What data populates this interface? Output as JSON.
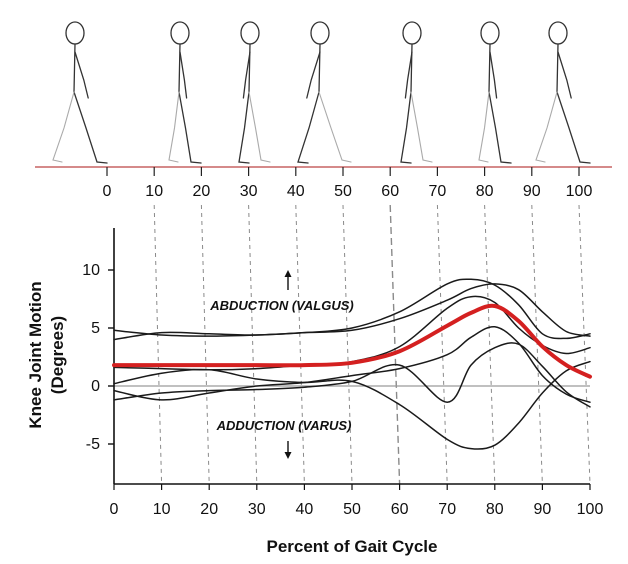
{
  "chart_data": {
    "type": "line",
    "xlabel": "Percent of Gait Cycle",
    "ylabel_line1": "Knee Joint Motion",
    "ylabel_line2": "(Degrees)",
    "xlim": [
      0,
      100
    ],
    "ylim": [
      -10,
      12
    ],
    "x_ticks": [
      0,
      10,
      20,
      30,
      40,
      50,
      60,
      70,
      80,
      90,
      100
    ],
    "y_ticks": [
      10,
      5,
      0,
      -5
    ],
    "top_scale_ticks": [
      0,
      10,
      20,
      30,
      40,
      50,
      60,
      70,
      80,
      90,
      100
    ],
    "annotations": {
      "abduction": "ABDUCTION (VALGUS)",
      "adduction": "ADDUCTION (VARUS)"
    },
    "x": [
      0,
      10,
      20,
      30,
      40,
      50,
      60,
      70,
      75,
      80,
      85,
      90,
      95,
      100
    ],
    "series": [
      {
        "values": [
          1.8,
          1.8,
          1.8,
          1.8,
          1.8,
          2.0,
          3.0,
          5.2,
          6.3,
          6.9,
          5.6,
          3.4,
          1.8,
          0.8
        ],
        "highlight": true
      },
      {
        "values": [
          4.8,
          4.4,
          4.3,
          4.4,
          4.6,
          5.0,
          6.4,
          8.8,
          9.2,
          8.7,
          7.0,
          4.5,
          4.1,
          4.5
        ]
      },
      {
        "values": [
          4.0,
          4.6,
          4.5,
          4.4,
          4.6,
          4.8,
          5.8,
          7.4,
          8.4,
          8.8,
          8.3,
          6.4,
          4.7,
          4.3
        ]
      },
      {
        "values": [
          1.6,
          1.5,
          1.4,
          1.5,
          1.8,
          2.1,
          3.4,
          6.7,
          7.7,
          7.2,
          5.0,
          3.5,
          2.8,
          3.3
        ]
      },
      {
        "values": [
          -1.2,
          -0.6,
          -0.4,
          -0.3,
          -0.1,
          0.4,
          1.8,
          -1.4,
          1.8,
          3.3,
          3.6,
          1.7,
          -0.5,
          -1.8
        ]
      },
      {
        "values": [
          0.2,
          1.1,
          1.4,
          0.6,
          0.3,
          0.4,
          -1.6,
          -4.6,
          -5.4,
          -5.1,
          -3.2,
          -0.6,
          1.3,
          2.1
        ]
      },
      {
        "values": [
          -0.4,
          -1.2,
          -0.6,
          0.0,
          0.3,
          0.9,
          1.5,
          2.7,
          4.2,
          5.1,
          3.7,
          0.9,
          -0.7,
          -1.4
        ]
      }
    ],
    "colors": {
      "highlight": "#d42020",
      "lines": "#1a1a1a",
      "grid": "#8a8a8a",
      "zero_line": "#9a9a9a",
      "floor_line": "#d58a8a"
    }
  }
}
